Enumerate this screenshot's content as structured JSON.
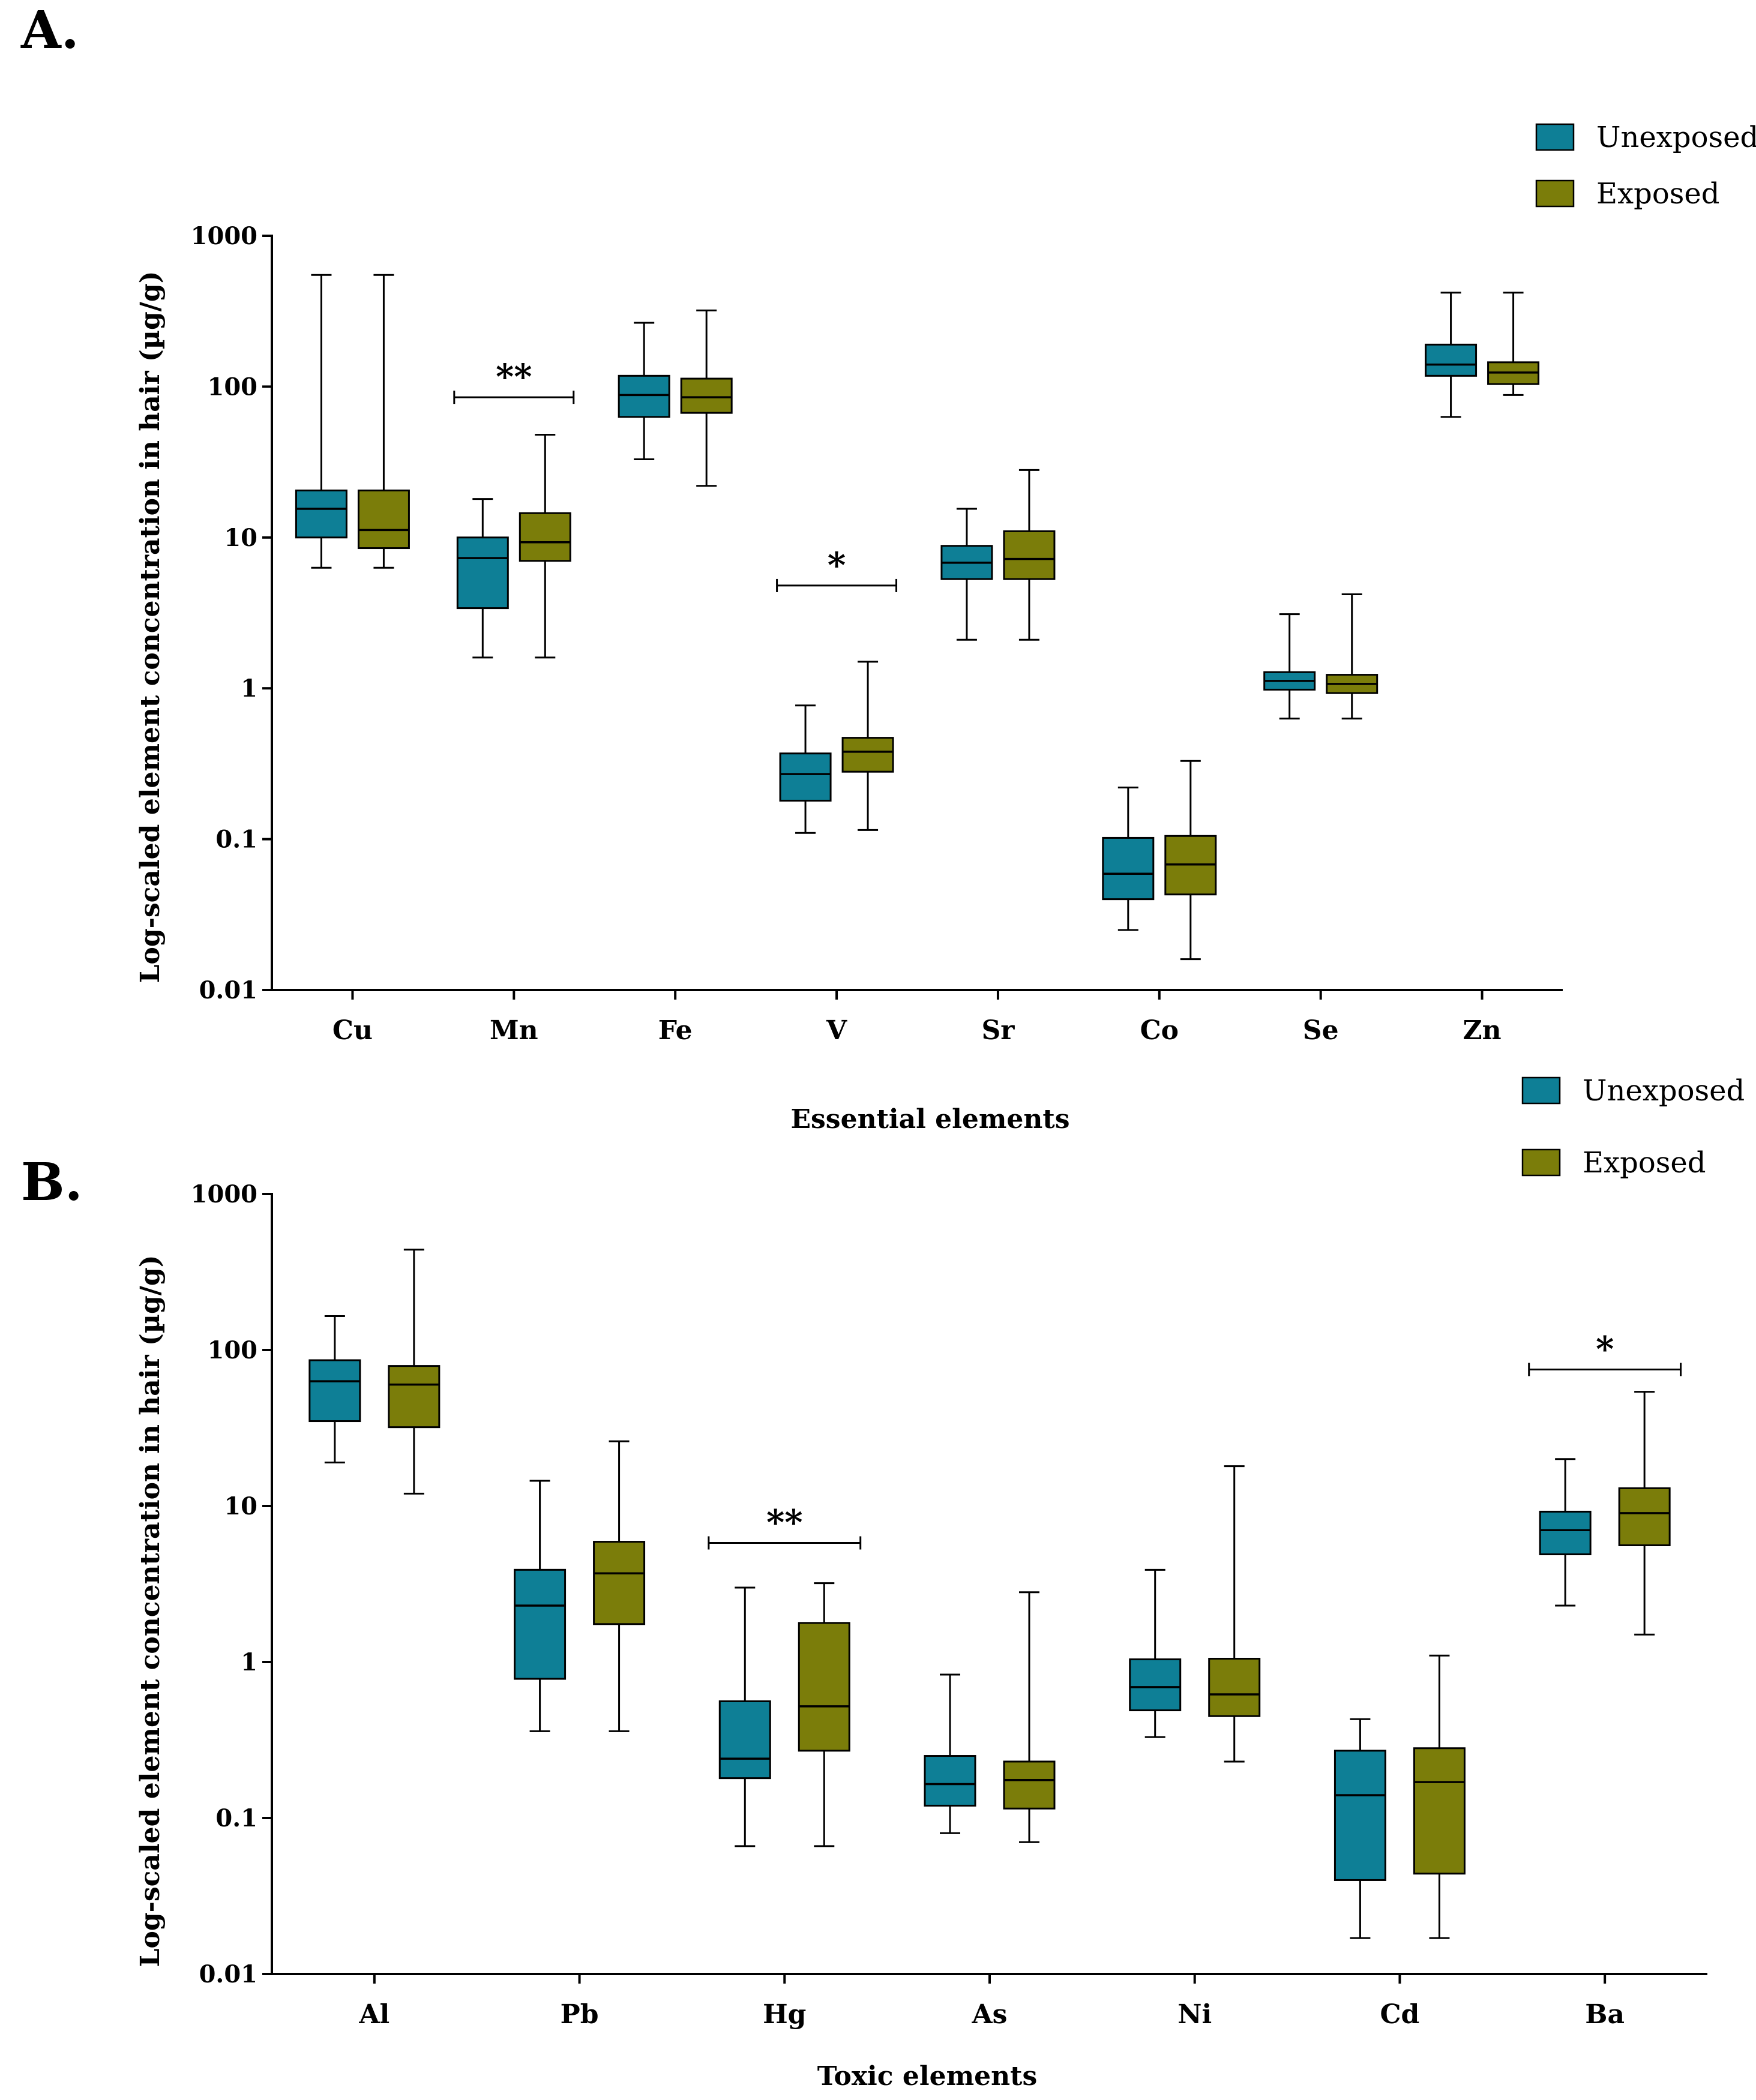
{
  "colors": {
    "unexposed": "#0e7f96",
    "exposed": "#7b7d0a",
    "line": "#000000"
  },
  "chart_data": [
    {
      "panel_label": "A.",
      "type": "box",
      "xlabel": "Essential elements",
      "ylabel": "Log-scaled element concentration in hair (µg/g)",
      "yscale": "log",
      "ylim": [
        0.01,
        1000
      ],
      "yticks": [
        {
          "value": 0.01,
          "label": "0.01"
        },
        {
          "value": 0.1,
          "label": "0.1"
        },
        {
          "value": 1,
          "label": "1"
        },
        {
          "value": 10,
          "label": "10"
        },
        {
          "value": 100,
          "label": "100"
        },
        {
          "value": 1000,
          "label": "1000"
        }
      ],
      "legend": [
        "Unexposed",
        "Exposed"
      ],
      "legend_position": "top-right",
      "categories": [
        "Cu",
        "Mn",
        "Fe",
        "V",
        "Sr",
        "Co",
        "Se",
        "Zn"
      ],
      "series": [
        {
          "name": "Unexposed",
          "boxes": [
            {
              "min": 6.3,
              "q1": 10,
              "median": 15.5,
              "q3": 20.5,
              "max": 550
            },
            {
              "min": 1.6,
              "q1": 3.4,
              "median": 7.3,
              "q3": 10,
              "max": 18
            },
            {
              "min": 33,
              "q1": 63,
              "median": 88,
              "q3": 118,
              "max": 265
            },
            {
              "min": 0.11,
              "q1": 0.18,
              "median": 0.27,
              "q3": 0.37,
              "max": 0.77
            },
            {
              "min": 2.1,
              "q1": 5.3,
              "median": 6.8,
              "q3": 8.8,
              "max": 15.5
            },
            {
              "min": 0.025,
              "q1": 0.04,
              "median": 0.059,
              "q3": 0.102,
              "max": 0.22
            },
            {
              "min": 0.63,
              "q1": 0.98,
              "median": 1.12,
              "q3": 1.28,
              "max": 3.1
            },
            {
              "min": 63,
              "q1": 118,
              "median": 140,
              "q3": 190,
              "max": 420
            }
          ]
        },
        {
          "name": "Exposed",
          "boxes": [
            {
              "min": 6.3,
              "q1": 8.5,
              "median": 11.2,
              "q3": 20.5,
              "max": 550
            },
            {
              "min": 1.6,
              "q1": 7,
              "median": 9.3,
              "q3": 14.5,
              "max": 48
            },
            {
              "min": 22,
              "q1": 67,
              "median": 85,
              "q3": 113,
              "max": 320
            },
            {
              "min": 0.115,
              "q1": 0.28,
              "median": 0.38,
              "q3": 0.47,
              "max": 1.5
            },
            {
              "min": 2.1,
              "q1": 5.3,
              "median": 7.2,
              "q3": 11,
              "max": 28
            },
            {
              "min": 0.016,
              "q1": 0.043,
              "median": 0.068,
              "q3": 0.105,
              "max": 0.33
            },
            {
              "min": 0.63,
              "q1": 0.93,
              "median": 1.07,
              "q3": 1.23,
              "max": 4.2
            },
            {
              "min": 88,
              "q1": 104,
              "median": 124,
              "q3": 145,
              "max": 420
            }
          ]
        }
      ],
      "significance": [
        {
          "category": "Mn",
          "label": "**",
          "y": 85
        },
        {
          "category": "V",
          "label": "*",
          "y": 4.8
        }
      ]
    },
    {
      "panel_label": "B.",
      "type": "box",
      "xlabel": "Toxic elements",
      "ylabel": "Log-scaled element concentration in hair (µg/g)",
      "yscale": "log",
      "ylim": [
        0.01,
        1000
      ],
      "yticks": [
        {
          "value": 0.01,
          "label": "0.01"
        },
        {
          "value": 0.1,
          "label": "0.1"
        },
        {
          "value": 1,
          "label": "1"
        },
        {
          "value": 10,
          "label": "10"
        },
        {
          "value": 100,
          "label": "100"
        },
        {
          "value": 1000,
          "label": "1000"
        }
      ],
      "legend": [
        "Unexposed",
        "Exposed"
      ],
      "legend_position": "top-right",
      "categories": [
        "Al",
        "Pb",
        "Hg",
        "As",
        "Ni",
        "Cd",
        "Ba"
      ],
      "series": [
        {
          "name": "Unexposed",
          "boxes": [
            {
              "min": 19,
              "q1": 35,
              "median": 63,
              "q3": 86,
              "max": 165
            },
            {
              "min": 0.36,
              "q1": 0.78,
              "median": 2.3,
              "q3": 3.9,
              "max": 14.5
            },
            {
              "min": 0.066,
              "q1": 0.18,
              "median": 0.24,
              "q3": 0.56,
              "max": 3
            },
            {
              "min": 0.08,
              "q1": 0.12,
              "median": 0.165,
              "q3": 0.25,
              "max": 0.83
            },
            {
              "min": 0.33,
              "q1": 0.49,
              "median": 0.69,
              "q3": 1.04,
              "max": 3.9
            },
            {
              "min": 0.017,
              "q1": 0.04,
              "median": 0.14,
              "q3": 0.27,
              "max": 0.43
            },
            {
              "min": 2.3,
              "q1": 4.9,
              "median": 7,
              "q3": 9.2,
              "max": 20
            }
          ]
        },
        {
          "name": "Exposed",
          "boxes": [
            {
              "min": 12,
              "q1": 32,
              "median": 60,
              "q3": 79,
              "max": 440
            },
            {
              "min": 0.36,
              "q1": 1.75,
              "median": 3.7,
              "q3": 5.9,
              "max": 26
            },
            {
              "min": 0.066,
              "q1": 0.27,
              "median": 0.52,
              "q3": 1.78,
              "max": 3.2
            },
            {
              "min": 0.07,
              "q1": 0.115,
              "median": 0.175,
              "q3": 0.23,
              "max": 2.8
            },
            {
              "min": 0.23,
              "q1": 0.45,
              "median": 0.62,
              "q3": 1.05,
              "max": 18
            },
            {
              "min": 0.017,
              "q1": 0.044,
              "median": 0.17,
              "q3": 0.28,
              "max": 1.1
            },
            {
              "min": 1.5,
              "q1": 5.6,
              "median": 9,
              "q3": 13,
              "max": 54
            }
          ]
        }
      ],
      "significance": [
        {
          "category": "Hg",
          "label": "**",
          "y": 5.8
        },
        {
          "category": "Ba",
          "label": "*",
          "y": 75
        }
      ]
    }
  ]
}
